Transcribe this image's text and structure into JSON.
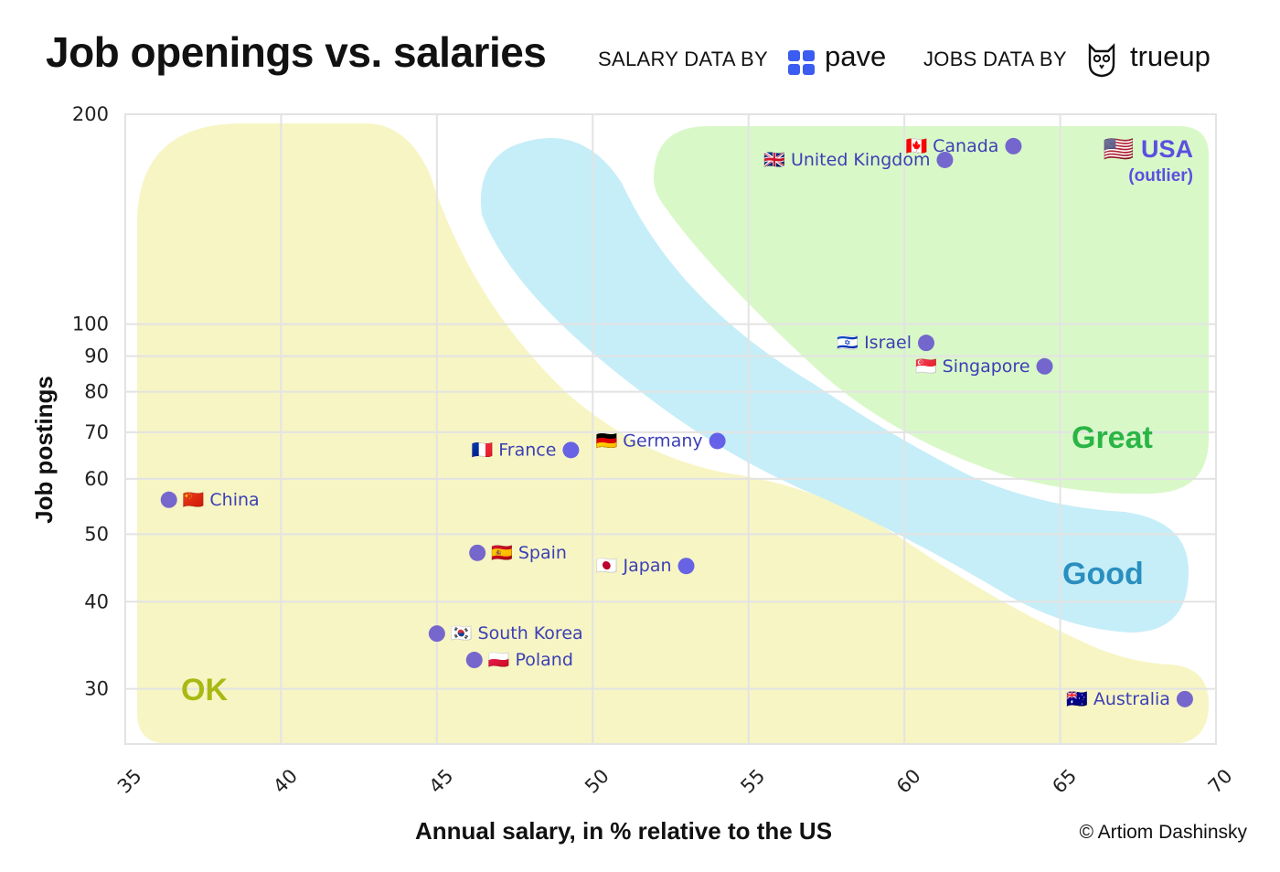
{
  "header": {
    "title": "Job openings vs. salaries",
    "salary_credit": "SALARY DATA BY",
    "salary_brand": "pave",
    "jobs_credit": "JOBS DATA BY",
    "jobs_brand": "trueup"
  },
  "footer": {
    "copyright": "© Artiom Dashinsky"
  },
  "colors": {
    "point": "#6a5acd",
    "point_highlight": "#5b55e6",
    "label": "#3b3fb5",
    "ok": "#f7f5c4",
    "good": "#c6eef8",
    "great": "#d9f8c8"
  },
  "chart_data": {
    "type": "scatter",
    "title": "Job openings vs. salaries",
    "xlabel": "Annual salary, in % relative to the US",
    "ylabel": "Job postings",
    "xlim": [
      35,
      70
    ],
    "ylim": [
      25,
      200
    ],
    "yscale": "log",
    "grid": true,
    "xticks": [
      35,
      40,
      45,
      50,
      55,
      60,
      65,
      70
    ],
    "yticks": [
      30,
      40,
      50,
      60,
      70,
      80,
      90,
      100,
      200
    ],
    "points": [
      {
        "country": "USA",
        "note": "(outlier)",
        "x": null,
        "y": null,
        "flag": "🇺🇸"
      },
      {
        "country": "Canada",
        "x": 63.5,
        "y": 180,
        "flag": "🇨🇦"
      },
      {
        "country": "United Kingdom",
        "x": 61.3,
        "y": 172,
        "flag": "🇬🇧"
      },
      {
        "country": "Israel",
        "x": 60.7,
        "y": 94,
        "flag": "🇮🇱"
      },
      {
        "country": "Singapore",
        "x": 64.5,
        "y": 87,
        "flag": "🇸🇬"
      },
      {
        "country": "Germany",
        "x": 54,
        "y": 68,
        "flag": "🇩🇪"
      },
      {
        "country": "France",
        "x": 49.3,
        "y": 66,
        "flag": "🇫🇷"
      },
      {
        "country": "China",
        "x": 36.4,
        "y": 56,
        "flag": "🇨🇳"
      },
      {
        "country": "Spain",
        "x": 46.3,
        "y": 47,
        "flag": "🇪🇸"
      },
      {
        "country": "Japan",
        "x": 53,
        "y": 45,
        "flag": "🇯🇵"
      },
      {
        "country": "South Korea",
        "x": 45,
        "y": 36,
        "flag": "🇰🇷"
      },
      {
        "country": "Poland",
        "x": 46.2,
        "y": 33,
        "flag": "🇵🇱"
      },
      {
        "country": "Australia",
        "x": 69,
        "y": 29,
        "flag": "🇦🇺"
      }
    ],
    "regions": [
      {
        "name": "Great",
        "color": "#2ab545"
      },
      {
        "name": "Good",
        "color": "#2a8fbf"
      },
      {
        "name": "OK",
        "color": "#a9b813"
      }
    ]
  }
}
